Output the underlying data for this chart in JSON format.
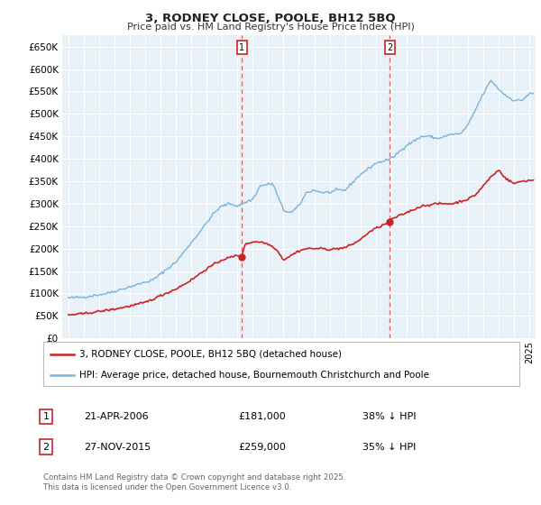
{
  "title": "3, RODNEY CLOSE, POOLE, BH12 5BQ",
  "subtitle": "Price paid vs. HM Land Registry's House Price Index (HPI)",
  "ylim": [
    0,
    675000
  ],
  "yticks": [
    0,
    50000,
    100000,
    150000,
    200000,
    250000,
    300000,
    350000,
    400000,
    450000,
    500000,
    550000,
    600000,
    650000
  ],
  "xlim_start": 1994.6,
  "xlim_end": 2025.4,
  "background_color": "#ffffff",
  "plot_bg_color": "#e8f0f8",
  "grid_color": "#ffffff",
  "hpi_color": "#7ab4d8",
  "price_color": "#cc2222",
  "marker1_date": 2006.29,
  "marker1_label": "1",
  "marker1_price": 181000,
  "marker1_pct": "38% ↓ HPI",
  "marker1_date_str": "21-APR-2006",
  "marker2_date": 2015.91,
  "marker2_label": "2",
  "marker2_price": 259000,
  "marker2_pct": "35% ↓ HPI",
  "marker2_date_str": "27-NOV-2015",
  "legend_line1": "3, RODNEY CLOSE, POOLE, BH12 5BQ (detached house)",
  "legend_line2": "HPI: Average price, detached house, Bournemouth Christchurch and Poole",
  "annotation1_price": "£181,000",
  "annotation2_price": "£259,000",
  "footer": "Contains HM Land Registry data © Crown copyright and database right 2025.\nThis data is licensed under the Open Government Licence v3.0.",
  "hpi_anchors": {
    "1995.0": 90000,
    "1996.0": 92000,
    "1997.5": 100000,
    "1999.0": 115000,
    "2000.5": 130000,
    "2002.0": 170000,
    "2003.5": 235000,
    "2004.5": 280000,
    "2005.0": 295000,
    "2005.5": 300000,
    "2006.0": 295000,
    "2007.0": 310000,
    "2007.5": 340000,
    "2008.3": 345000,
    "2009.0": 285000,
    "2009.5": 280000,
    "2010.0": 295000,
    "2010.5": 325000,
    "2011.0": 330000,
    "2011.5": 325000,
    "2012.0": 325000,
    "2012.5": 330000,
    "2013.0": 330000,
    "2014.0": 365000,
    "2015.0": 390000,
    "2015.5": 395000,
    "2016.0": 400000,
    "2016.5": 415000,
    "2017.0": 430000,
    "2017.5": 440000,
    "2018.0": 450000,
    "2018.5": 450000,
    "2019.0": 445000,
    "2019.5": 450000,
    "2020.0": 455000,
    "2020.5": 455000,
    "2021.0": 475000,
    "2021.5": 510000,
    "2022.0": 545000,
    "2022.5": 575000,
    "2023.0": 555000,
    "2023.5": 540000,
    "2024.0": 530000,
    "2024.5": 530000,
    "2025.0": 545000,
    "2025.3": 545000
  },
  "price_anchors": {
    "1995.0": 52000,
    "1996.0": 55000,
    "1997.0": 60000,
    "1998.0": 65000,
    "1999.0": 72000,
    "2000.0": 80000,
    "2001.0": 95000,
    "2002.0": 110000,
    "2003.0": 130000,
    "2004.0": 155000,
    "2005.0": 175000,
    "2006.0": 185000,
    "2006.29": 181000,
    "2006.5": 210000,
    "2007.0": 215000,
    "2007.5": 215000,
    "2008.0": 210000,
    "2008.5": 200000,
    "2009.0": 175000,
    "2009.5": 185000,
    "2010.0": 195000,
    "2010.5": 200000,
    "2011.0": 200000,
    "2011.5": 200000,
    "2012.0": 198000,
    "2012.5": 200000,
    "2013.0": 202000,
    "2013.5": 210000,
    "2014.0": 220000,
    "2014.5": 235000,
    "2015.0": 245000,
    "2015.91": 259000,
    "2016.0": 265000,
    "2017.0": 280000,
    "2018.0": 295000,
    "2019.0": 300000,
    "2020.0": 300000,
    "2021.0": 310000,
    "2021.5": 320000,
    "2022.0": 340000,
    "2022.5": 360000,
    "2023.0": 375000,
    "2023.5": 355000,
    "2024.0": 345000,
    "2024.5": 350000,
    "2025.0": 352000,
    "2025.3": 352000
  }
}
